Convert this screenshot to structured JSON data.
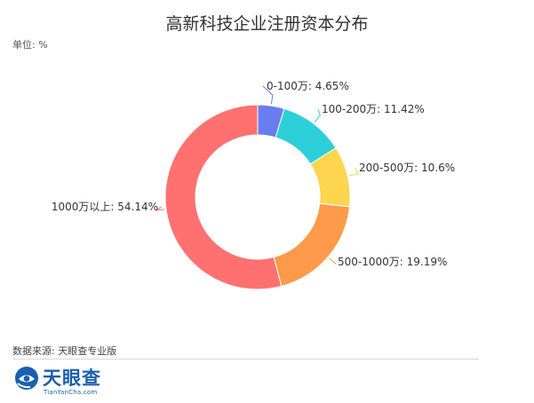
{
  "chart_data": {
    "type": "pie",
    "variant": "donut",
    "title": "高新科技企业注册资本分布",
    "unit_label": "单位: %",
    "slices": [
      {
        "label": "0-100万",
        "value": 4.65,
        "display": "0-100万: 4.65%",
        "color": "#6a7df0"
      },
      {
        "label": "100-200万",
        "value": 11.42,
        "display": "100-200万: 11.42%",
        "color": "#2ccfd8"
      },
      {
        "label": "200-500万",
        "value": 10.6,
        "display": "200-500万: 10.6%",
        "color": "#fdd54e"
      },
      {
        "label": "500-1000万",
        "value": 19.19,
        "display": "500-1000万: 19.19%",
        "color": "#ff9a4a"
      },
      {
        "label": "1000万以上",
        "value": 54.14,
        "display": "1000万以上: 54.14%",
        "color": "#ff7170"
      }
    ]
  },
  "footer": {
    "source": "数据来源: 天眼查专业版",
    "logo_name": "天眼查",
    "logo_sub": "TianYanCha.com",
    "logo_color": "#1a5fb0"
  }
}
